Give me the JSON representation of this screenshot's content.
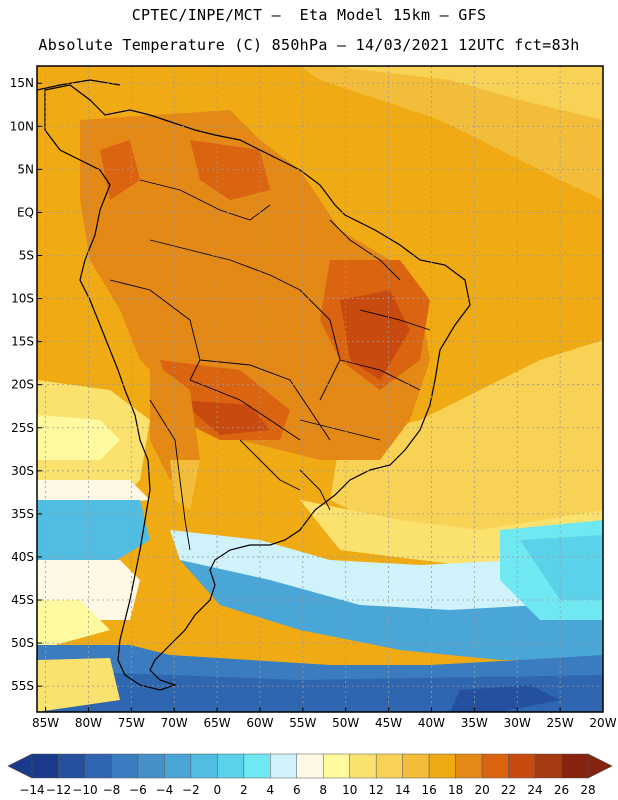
{
  "header": {
    "line1": "CPTEC/INPE/MCT –  Eta Model 15km – GFS",
    "line2": "Absolute Temperature (C) 850hPa – 14/03/2021 12UTC fct=83h"
  },
  "map": {
    "lat_labels": [
      "15N",
      "10N",
      "5N",
      "EQ",
      "5S",
      "10S",
      "15S",
      "20S",
      "25S",
      "30S",
      "35S",
      "40S",
      "45S",
      "50S",
      "55S"
    ],
    "lon_labels": [
      "85W",
      "80W",
      "75W",
      "70W",
      "65W",
      "60W",
      "55W",
      "50W",
      "45W",
      "40W",
      "35W",
      "30W",
      "25W",
      "20W"
    ],
    "grid": true,
    "gridline_color": "#9a9a9a"
  },
  "colorbar": {
    "labels": [
      "-14",
      "-12",
      "-10",
      "-8",
      "-6",
      "-4",
      "-2",
      "0",
      "2",
      "4",
      "6",
      "8",
      "10",
      "12",
      "14",
      "16",
      "18",
      "20",
      "22",
      "24",
      "26",
      "28"
    ],
    "colors": [
      "#1a3a8c",
      "#24509e",
      "#2e66b0",
      "#3a7cbe",
      "#4690c8",
      "#4aa6d6",
      "#52bde2",
      "#5cd2ea",
      "#6fe8f2",
      "#cff2fb",
      "#fff8e4",
      "#fffaa0",
      "#fbe26e",
      "#f8d255",
      "#f3bd39",
      "#f0aa14",
      "#e48916",
      "#da6410",
      "#c84a0e",
      "#a63a10",
      "#85230f"
    ],
    "under_color": "#1a3a8c",
    "over_color": "#85230f"
  }
}
